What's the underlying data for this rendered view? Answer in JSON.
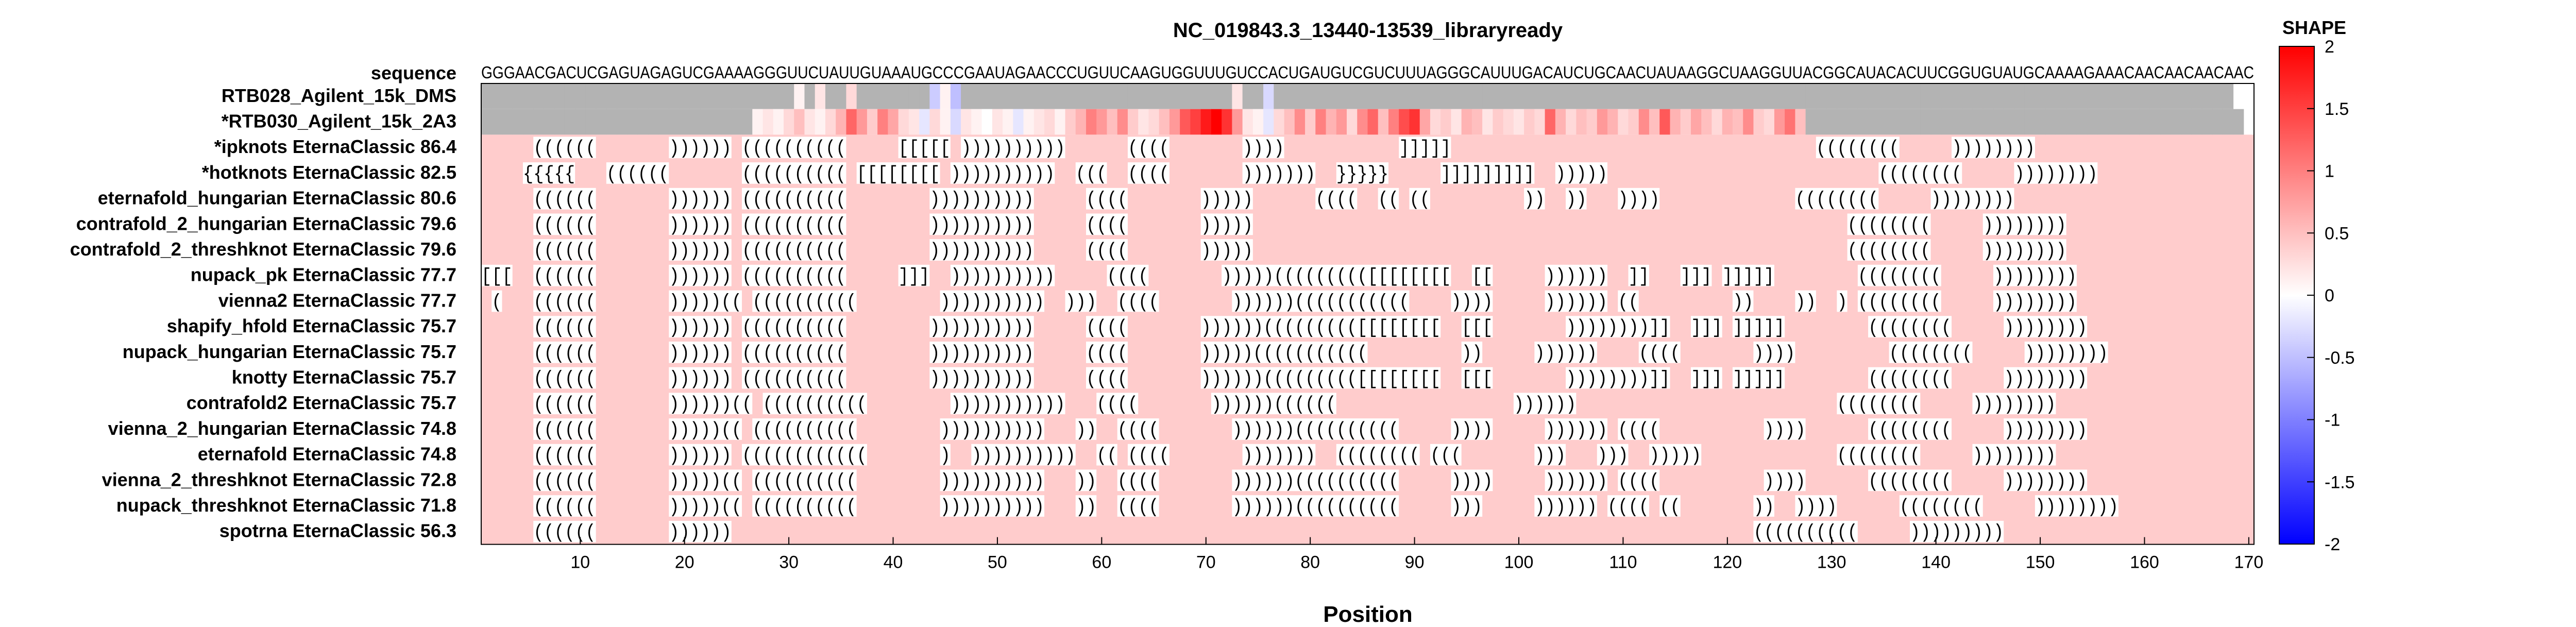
{
  "chart_data": {
    "type": "heatmap",
    "title": "NC_019843.3_13440-13539_libraryready",
    "xlabel": "Position",
    "xlim": [
      0.5,
      170.5
    ],
    "xticks": [
      10,
      20,
      30,
      40,
      50,
      60,
      70,
      80,
      90,
      100,
      110,
      120,
      130,
      140,
      150,
      160,
      170
    ],
    "sequence_label": "sequence",
    "sequence": "GGGAACGACUCGAGUAGAGUCGAAAAGGGUUCUAUUGUAAAUGCCCGAAUAGAACCCUGUUCAAGUGGUUUGUCCACUGAUGUCGUCUUUAGGGCAUUUGACAUCUGCAACUAUAAGGCUAAGGUUACGGCAUACACUUCGGUGUAUGCAAAAGAAACAACAACAACAAC",
    "reactivity_rows": [
      {
        "label": "RTB028_Agilent_15k_DMS",
        "values": [
          null,
          null,
          null,
          null,
          null,
          null,
          null,
          null,
          null,
          null,
          null,
          null,
          null,
          null,
          null,
          null,
          null,
          null,
          null,
          null,
          null,
          null,
          null,
          null,
          null,
          null,
          null,
          null,
          null,
          null,
          0.1,
          null,
          0.2,
          null,
          null,
          0.3,
          null,
          null,
          null,
          null,
          null,
          null,
          null,
          -0.4,
          0.1,
          -0.5,
          null,
          null,
          null,
          null,
          null,
          null,
          null,
          null,
          null,
          null,
          null,
          null,
          null,
          null,
          null,
          null,
          null,
          null,
          null,
          null,
          null,
          null,
          null,
          null,
          null,
          null,
          0.2,
          null,
          null,
          -0.3,
          null,
          null,
          null,
          null,
          null,
          null,
          null,
          null,
          null,
          null,
          null,
          null,
          null,
          null,
          null,
          null,
          null,
          null,
          null,
          null,
          null,
          null,
          null,
          null,
          null,
          null,
          null,
          null,
          null,
          null,
          null,
          null,
          null,
          null,
          null,
          null,
          null,
          null,
          null,
          null,
          null,
          null,
          null,
          null,
          null,
          null,
          null,
          null,
          null,
          null,
          null,
          null,
          null,
          null,
          null,
          null,
          null,
          null,
          null,
          null,
          null,
          null,
          null,
          null,
          null,
          null,
          null,
          null,
          null,
          null,
          null,
          null,
          null,
          null,
          null,
          null,
          null,
          null,
          null,
          null,
          null,
          null,
          null,
          null,
          null,
          null,
          null,
          null,
          null,
          null,
          null,
          null
        ]
      },
      {
        "label": "*RTB030_Agilent_15k_2A3",
        "values": [
          null,
          null,
          null,
          null,
          null,
          null,
          null,
          null,
          null,
          null,
          null,
          null,
          null,
          null,
          null,
          null,
          null,
          null,
          null,
          null,
          null,
          null,
          null,
          null,
          null,
          null,
          0.1,
          0.2,
          0.1,
          0.3,
          0.5,
          0.2,
          0.1,
          0.3,
          0.6,
          1.2,
          0.8,
          0.4,
          1.0,
          0.7,
          0.3,
          0.2,
          -0.2,
          0.3,
          0.1,
          -0.3,
          0.2,
          0.1,
          0.0,
          0.2,
          0.1,
          -0.2,
          0.1,
          0.2,
          0.3,
          0.1,
          0.4,
          0.6,
          1.0,
          0.8,
          0.5,
          0.9,
          0.4,
          0.2,
          0.3,
          0.5,
          0.8,
          1.3,
          1.5,
          1.8,
          2.0,
          1.6,
          0.8,
          0.2,
          0.1,
          -0.2,
          0.3,
          0.5,
          0.9,
          0.4,
          1.0,
          0.6,
          0.8,
          0.3,
          0.9,
          1.2,
          0.5,
          1.0,
          1.4,
          1.6,
          0.7,
          0.3,
          0.4,
          0.2,
          0.6,
          0.5,
          0.2,
          0.4,
          0.3,
          0.2,
          0.4,
          0.3,
          1.2,
          0.6,
          0.3,
          0.5,
          0.4,
          0.8,
          0.6,
          0.3,
          0.4,
          0.9,
          0.5,
          1.3,
          0.6,
          0.4,
          0.7,
          0.5,
          0.3,
          0.6,
          0.5,
          0.9,
          0.4,
          0.3,
          0.8,
          1.1,
          0.5,
          null,
          null,
          null,
          null,
          null,
          null,
          null,
          null,
          null,
          null,
          null,
          null,
          null,
          null,
          null,
          null,
          null,
          null,
          null,
          null,
          null,
          null,
          null,
          null,
          null,
          null,
          null,
          null,
          null,
          null,
          null,
          null,
          null,
          null,
          null,
          null,
          null,
          null,
          null,
          null,
          null,
          null
        ]
      }
    ],
    "structure_rows": [
      {
        "label": "*ipknots EternaClassic",
        "score": "86.4",
        "structure": ".....((((((.......)))))).((((((((((.....[[[[[.))))))))))......((((.......))))...........]]]]]...................................((((((((.....))))))))......................"
      },
      {
        "label": "*hotknots EternaClassic",
        "score": "82.5",
        "structure": "....{{{{{...((((((.......((((((((((.[[[[[[[[.))))))))))..(((..((((.......)))))))..}}}}}.....]]]]]]]]]..)))))..........................((((((((.....))))))))......................"
      },
      {
        "label": "eternafold_hungarian EternaClassic",
        "score": "80.6",
        "structure": ".....((((((.......)))))).((((((((((........)))))))))).....((((.......)))))......((((..((.((.........))..))...)))).............((((((((.....))))))))......................"
      },
      {
        "label": "contrafold_2_hungarian EternaClassic",
        "score": "79.6",
        "structure": ".....((((((.......)))))).((((((((((........)))))))))).....((((.......))))).........................................................((((((((.....))))))))......................"
      },
      {
        "label": "contrafold_2_threshknot EternaClassic",
        "score": "79.6",
        "structure": ".....((((((.......)))))).((((((((((........)))))))))).....((((.......))))).........................................................((((((((.....))))))))......................"
      },
      {
        "label": "nupack_pk EternaClassic",
        "score": "77.7",
        "structure": "[[[..((((((.......)))))).((((((((((.....]]]..)))))))))).....((((.......)))))((((((((([[[[[[[[..[[.....))))))..]]...]]].]]]]]........((((((((.....))))))))......................"
      },
      {
        "label": "vienna2 EternaClassic",
        "score": "77.7",
        "structure": ".(...((((((.......)))))((.((((((((((........))))))))))..)))..((((.......))))))(((((((((((....)))).....)))))).((.........))....))..).((((((((.....))))))))......................"
      },
      {
        "label": "shapify_hfold EternaClassic",
        "score": "75.7",
        "structure": ".....((((((.......)))))).((((((((((........)))))))))).....((((.......))))))((((((((([[[[[[[[..[[[.......))))))))]]..]]].]]]]]........((((((((.....))))))))......................"
      },
      {
        "label": "nupack_hungarian EternaClassic",
        "score": "75.7",
        "structure": ".....((((((.......)))))).((((((((((........)))))))))).....((((.......)))))(((((((((((.........)).....))))))....((((.......)))).........((((((((.....))))))))......................"
      },
      {
        "label": "knotty EternaClassic",
        "score": "75.7",
        "structure": ".....((((((.......)))))).((((((((((........)))))))))).....((((.......))))))((((((((([[[[[[[[..[[[.......))))))))]]..]]].]]]]]........((((((((.....))))))))......................"
      },
      {
        "label": "contrafold2 EternaClassic",
        "score": "75.7",
        "structure": ".....((((((.......))))))((.((((((((((........)))))))))))...((((.......))))))((((((.................)))))).........................((((((((.....))))))))......................"
      },
      {
        "label": "vienna_2_hungarian EternaClassic",
        "score": "74.8",
        "structure": ".....((((((.......)))))((.((((((((((........))))))))))...))..((((.......))))))((((((((((.....)))).....)))))).((((..........))))......((((((((.....))))))))......................"
      },
      {
        "label": "eternafold EternaClassic",
        "score": "74.8",
        "structure": ".....((((((.......)))))).((((((((((((.......)..))))))))))..((.((((.......)))))))..((((((((.(((.......)))...)))..))))).............((((((((.....))))))))......................"
      },
      {
        "label": "vienna_2_threshknot EternaClassic",
        "score": "72.8",
        "structure": ".....((((((.......)))))((.((((((((((........))))))))))...))..((((.......))))))((((((((((.....)))).....)))))).((((..........))))......((((((((.....))))))))......................"
      },
      {
        "label": "nupack_threshknot EternaClassic",
        "score": "71.8",
        "structure": ".....((((((.......)))))((.((((((((((........))))))))))...))..((((.......))))))((((((((((.....))).....)))))).((((.((.......))..))))......((((((((.....))))))))......................"
      },
      {
        "label": "spotrna EternaClassic",
        "score": "56.3",
        "structure": ".....((((((.......))))))..................................................................................................((((((((((.....)))))))))......................"
      }
    ],
    "colorbar": {
      "title": "SHAPE",
      "range": [
        -2,
        2
      ],
      "ticks": [
        2,
        1.5,
        1,
        0.5,
        0,
        -0.5,
        -1,
        -1.5,
        -2
      ],
      "tick_labels": [
        "2",
        "1.5",
        "1",
        "0.5",
        "0",
        "-0.5",
        "-1",
        "-1.5",
        "-2"
      ]
    },
    "colors": {
      "missing": "#b3b3b3",
      "structure_background": "#ffcccc",
      "dot_cell": "#ffcccc",
      "paired_cell": "#ffffff",
      "low": "#0000ff",
      "mid": "#ffffff",
      "high": "#ff0000"
    }
  }
}
